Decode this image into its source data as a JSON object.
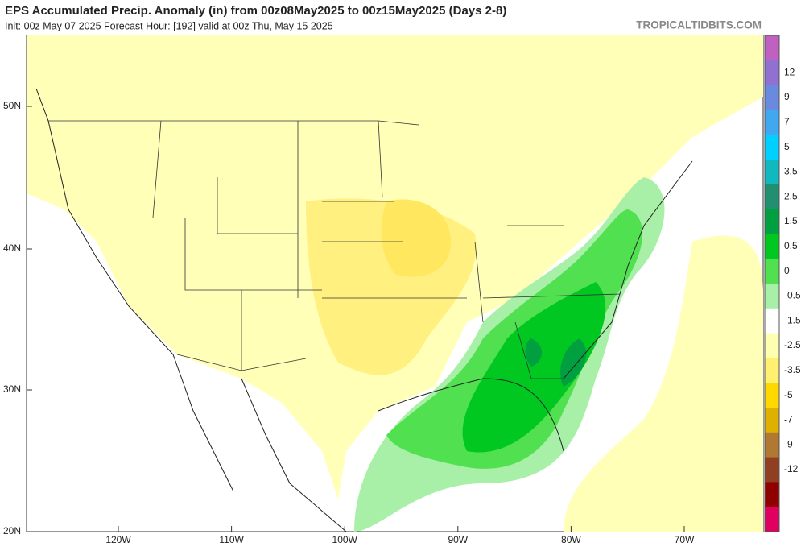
{
  "header": {
    "title": "EPS Accumulated Precip. Anomaly (in) from 00z08May2025 to 00z15May2025 (Days 2-8)",
    "subtitle": "Init: 00z May 07 2025   Forecast Hour: [192]   valid at 00z Thu, May 15 2025",
    "site": "TROPICALTIDBITS.COM"
  },
  "map": {
    "lat_labels": [
      "50N",
      "40N",
      "30N",
      "20N"
    ],
    "lon_labels": [
      "120W",
      "110W",
      "100W",
      "90W",
      "80W",
      "70W"
    ]
  },
  "colorbar": {
    "labels": [
      "12",
      "9",
      "7",
      "5",
      "3.5",
      "2.5",
      "1.5",
      "0.5",
      "0",
      "-0.5",
      "-1.5",
      "-2.5",
      "-3.5",
      "-5",
      "-7",
      "-9",
      "-12"
    ],
    "colors": [
      "#c060c0",
      "#9070d0",
      "#6a8ae0",
      "#40a8f0",
      "#00d0ff",
      "#10b8c0",
      "#209070",
      "#00a040",
      "#00c820",
      "#50e050",
      "#a8f0a8",
      "#ffffff",
      "#ffffb0",
      "#fff070",
      "#ffd800",
      "#e0b000",
      "#b07830",
      "#904020",
      "#900000",
      "#e00060"
    ]
  }
}
